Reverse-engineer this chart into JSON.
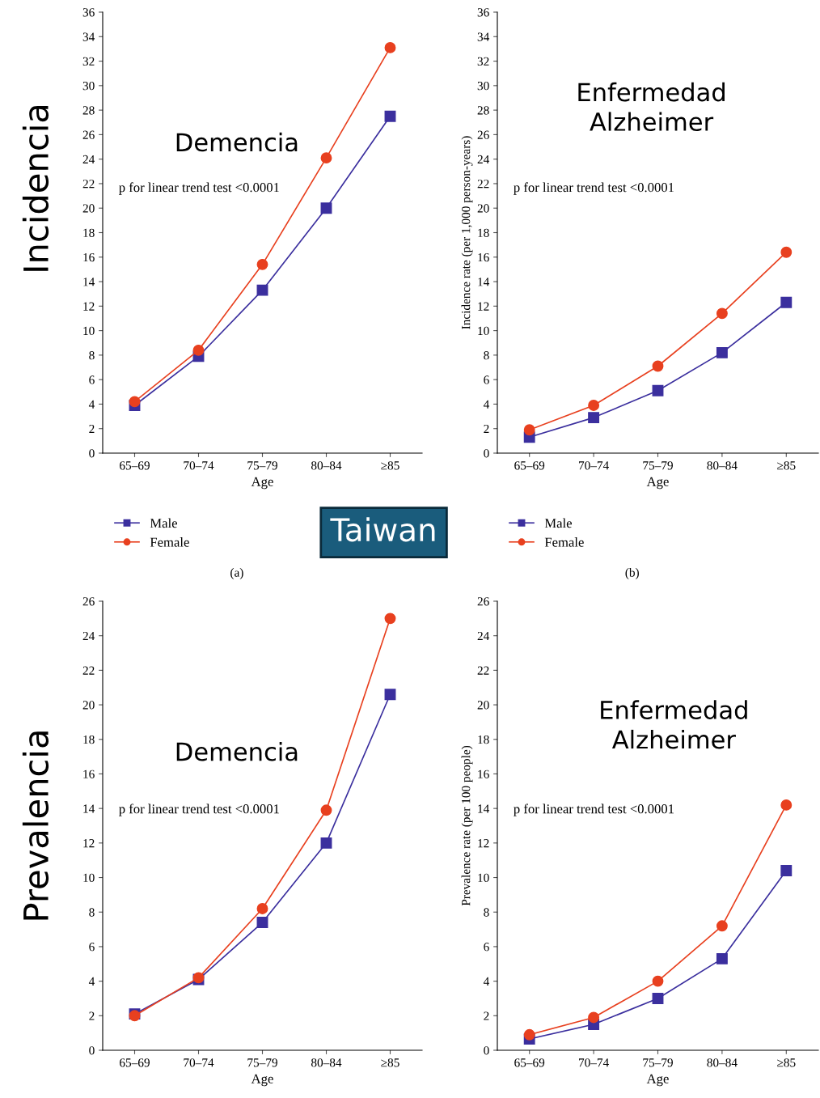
{
  "chart_data": [
    {
      "type": "line",
      "title": "Demencia",
      "xlabel": "Age",
      "categories": [
        "65–69",
        "70–74",
        "75–79",
        "80–84",
        "≥85"
      ],
      "series": [
        {
          "name": "Male",
          "color": "#3b2f9e",
          "marker": "square",
          "values": [
            3.9,
            7.9,
            13.3,
            20.0,
            27.5
          ]
        },
        {
          "name": "Female",
          "color": "#e8401f",
          "marker": "circle",
          "values": [
            4.2,
            8.4,
            15.4,
            24.1,
            33.1
          ]
        }
      ],
      "ylim": [
        0,
        36
      ],
      "yticks": [
        0,
        2,
        4,
        6,
        8,
        10,
        12,
        14,
        16,
        18,
        20,
        22,
        24,
        26,
        28,
        30,
        32,
        34,
        36
      ],
      "grid": false,
      "legend": "bottom",
      "annotations": [
        "p for linear trend test <0.0001",
        "(a)",
        "Incidencia",
        "Taiwan"
      ]
    },
    {
      "type": "line",
      "title": "Enfermedad\nAlzheimer",
      "xlabel": "Age",
      "ylabel": "Incidence rate (per 1,000 person-years)",
      "categories": [
        "65–69",
        "70–74",
        "75–79",
        "80–84",
        "≥85"
      ],
      "series": [
        {
          "name": "Male",
          "color": "#3b2f9e",
          "marker": "square",
          "values": [
            1.3,
            2.9,
            5.1,
            8.2,
            12.3
          ]
        },
        {
          "name": "Female",
          "color": "#e8401f",
          "marker": "circle",
          "values": [
            1.9,
            3.9,
            7.1,
            11.4,
            16.4
          ]
        }
      ],
      "ylim": [
        0,
        36
      ],
      "yticks": [
        0,
        2,
        4,
        6,
        8,
        10,
        12,
        14,
        16,
        18,
        20,
        22,
        24,
        26,
        28,
        30,
        32,
        34,
        36
      ],
      "grid": false,
      "legend": "bottom",
      "annotations": [
        "p for linear trend test <0.0001",
        "(b)"
      ]
    },
    {
      "type": "line",
      "title": "Demencia",
      "xlabel": "Age",
      "categories": [
        "65–69",
        "70–74",
        "75–79",
        "80–84",
        "≥85"
      ],
      "series": [
        {
          "color": "#3b2f9e",
          "marker": "square",
          "values": [
            2.1,
            4.1,
            7.4,
            12.0,
            20.6
          ]
        },
        {
          "color": "#e8401f",
          "marker": "circle",
          "values": [
            2.0,
            4.2,
            8.2,
            13.9,
            25.0
          ]
        }
      ],
      "ylim": [
        0,
        26
      ],
      "yticks": [
        0,
        2,
        4,
        6,
        8,
        10,
        12,
        14,
        16,
        18,
        20,
        22,
        24,
        26
      ],
      "grid": false,
      "annotations": [
        "p for linear trend test <0.0001",
        "Prevalencia"
      ]
    },
    {
      "type": "line",
      "title": "Enfermedad\nAlzheimer",
      "xlabel": "Age",
      "ylabel": "Prevalence rate (per 100 people)",
      "categories": [
        "65–69",
        "70–74",
        "75–79",
        "80–84",
        "≥85"
      ],
      "series": [
        {
          "color": "#3b2f9e",
          "marker": "square",
          "values": [
            0.65,
            1.5,
            3.0,
            5.3,
            10.4
          ]
        },
        {
          "color": "#e8401f",
          "marker": "circle",
          "values": [
            0.9,
            1.9,
            4.0,
            7.2,
            14.2
          ]
        }
      ],
      "ylim": [
        0,
        26
      ],
      "yticks": [
        0,
        2,
        4,
        6,
        8,
        10,
        12,
        14,
        16,
        18,
        20,
        22,
        24,
        26
      ],
      "grid": false,
      "annotations": [
        "p for linear trend test <0.0001"
      ]
    }
  ]
}
